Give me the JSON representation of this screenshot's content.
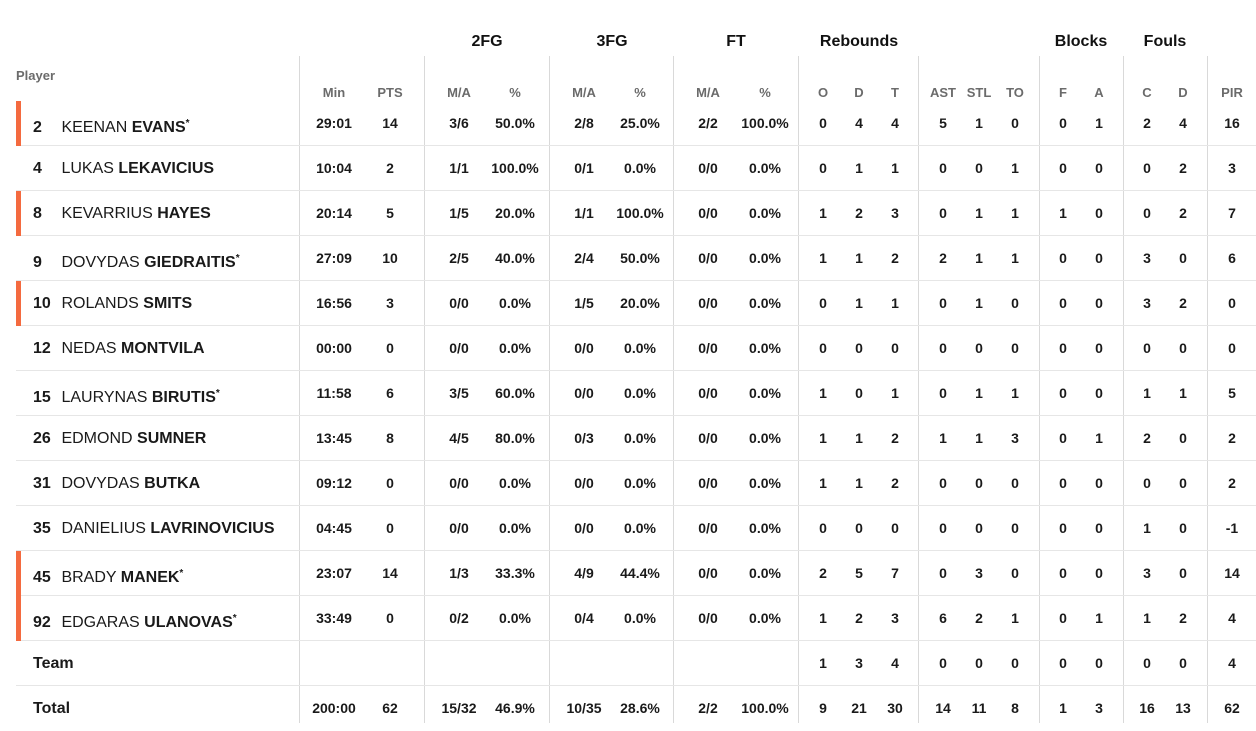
{
  "headers": {
    "player": "Player",
    "groups": [
      {
        "key": "fg2",
        "label": "2FG"
      },
      {
        "key": "fg3",
        "label": "3FG"
      },
      {
        "key": "ft",
        "label": "FT"
      },
      {
        "key": "reb",
        "label": "Rebounds"
      },
      {
        "key": "blk",
        "label": "Blocks"
      },
      {
        "key": "fouls",
        "label": "Fouls"
      }
    ],
    "columns": [
      "Min",
      "PTS",
      "M/A",
      "%",
      "M/A",
      "%",
      "M/A",
      "%",
      "O",
      "D",
      "T",
      "AST",
      "STL",
      "TO",
      "F",
      "A",
      "C",
      "D",
      "PIR"
    ]
  },
  "players": [
    {
      "number": "2",
      "first": "KEENAN",
      "last": "EVANS",
      "star": true,
      "starter": true,
      "stats": [
        "29:01",
        "14",
        "3/6",
        "50.0%",
        "2/8",
        "25.0%",
        "2/2",
        "100.0%",
        "0",
        "4",
        "4",
        "5",
        "1",
        "0",
        "0",
        "1",
        "2",
        "4",
        "16"
      ]
    },
    {
      "number": "4",
      "first": "LUKAS",
      "last": "LEKAVICIUS",
      "star": false,
      "starter": false,
      "stats": [
        "10:04",
        "2",
        "1/1",
        "100.0%",
        "0/1",
        "0.0%",
        "0/0",
        "0.0%",
        "0",
        "1",
        "1",
        "0",
        "0",
        "1",
        "0",
        "0",
        "0",
        "2",
        "3"
      ]
    },
    {
      "number": "8",
      "first": "KEVARRIUS",
      "last": "HAYES",
      "star": false,
      "starter": true,
      "stats": [
        "20:14",
        "5",
        "1/5",
        "20.0%",
        "1/1",
        "100.0%",
        "0/0",
        "0.0%",
        "1",
        "2",
        "3",
        "0",
        "1",
        "1",
        "1",
        "0",
        "0",
        "2",
        "7"
      ]
    },
    {
      "number": "9",
      "first": "DOVYDAS",
      "last": "GIEDRAITIS",
      "star": true,
      "starter": false,
      "stats": [
        "27:09",
        "10",
        "2/5",
        "40.0%",
        "2/4",
        "50.0%",
        "0/0",
        "0.0%",
        "1",
        "1",
        "2",
        "2",
        "1",
        "1",
        "0",
        "0",
        "3",
        "0",
        "6"
      ]
    },
    {
      "number": "10",
      "first": "ROLANDS",
      "last": "SMITS",
      "star": false,
      "starter": true,
      "stats": [
        "16:56",
        "3",
        "0/0",
        "0.0%",
        "1/5",
        "20.0%",
        "0/0",
        "0.0%",
        "0",
        "1",
        "1",
        "0",
        "1",
        "0",
        "0",
        "0",
        "3",
        "2",
        "0"
      ]
    },
    {
      "number": "12",
      "first": "NEDAS",
      "last": "MONTVILA",
      "star": false,
      "starter": false,
      "stats": [
        "00:00",
        "0",
        "0/0",
        "0.0%",
        "0/0",
        "0.0%",
        "0/0",
        "0.0%",
        "0",
        "0",
        "0",
        "0",
        "0",
        "0",
        "0",
        "0",
        "0",
        "0",
        "0"
      ]
    },
    {
      "number": "15",
      "first": "LAURYNAS",
      "last": "BIRUTIS",
      "star": true,
      "starter": false,
      "stats": [
        "11:58",
        "6",
        "3/5",
        "60.0%",
        "0/0",
        "0.0%",
        "0/0",
        "0.0%",
        "1",
        "0",
        "1",
        "0",
        "1",
        "1",
        "0",
        "0",
        "1",
        "1",
        "5"
      ]
    },
    {
      "number": "26",
      "first": "EDMOND",
      "last": "SUMNER",
      "star": false,
      "starter": false,
      "stats": [
        "13:45",
        "8",
        "4/5",
        "80.0%",
        "0/3",
        "0.0%",
        "0/0",
        "0.0%",
        "1",
        "1",
        "2",
        "1",
        "1",
        "3",
        "0",
        "1",
        "2",
        "0",
        "2"
      ]
    },
    {
      "number": "31",
      "first": "DOVYDAS",
      "last": "BUTKA",
      "star": false,
      "starter": false,
      "stats": [
        "09:12",
        "0",
        "0/0",
        "0.0%",
        "0/0",
        "0.0%",
        "0/0",
        "0.0%",
        "1",
        "1",
        "2",
        "0",
        "0",
        "0",
        "0",
        "0",
        "0",
        "0",
        "2"
      ]
    },
    {
      "number": "35",
      "first": "DANIELIUS",
      "last": "LAVRINOVICIUS",
      "star": false,
      "starter": false,
      "stats": [
        "04:45",
        "0",
        "0/0",
        "0.0%",
        "0/0",
        "0.0%",
        "0/0",
        "0.0%",
        "0",
        "0",
        "0",
        "0",
        "0",
        "0",
        "0",
        "0",
        "1",
        "0",
        "-1"
      ]
    },
    {
      "number": "45",
      "first": "BRADY",
      "last": "MANEK",
      "star": true,
      "starter": true,
      "stats": [
        "23:07",
        "14",
        "1/3",
        "33.3%",
        "4/9",
        "44.4%",
        "0/0",
        "0.0%",
        "2",
        "5",
        "7",
        "0",
        "3",
        "0",
        "0",
        "0",
        "3",
        "0",
        "14"
      ]
    },
    {
      "number": "92",
      "first": "EDGARAS",
      "last": "ULANOVAS",
      "star": true,
      "starter": true,
      "stats": [
        "33:49",
        "0",
        "0/2",
        "0.0%",
        "0/4",
        "0.0%",
        "0/0",
        "0.0%",
        "1",
        "2",
        "3",
        "6",
        "2",
        "1",
        "0",
        "1",
        "1",
        "2",
        "4"
      ]
    }
  ],
  "team": {
    "label": "Team",
    "stats": [
      "",
      "",
      "",
      "",
      "",
      "",
      "",
      "",
      "1",
      "3",
      "4",
      "0",
      "0",
      "0",
      "0",
      "0",
      "0",
      "0",
      "4"
    ]
  },
  "total": {
    "label": "Total",
    "stats": [
      "200:00",
      "62",
      "15/32",
      "46.9%",
      "10/35",
      "28.6%",
      "2/2",
      "100.0%",
      "9",
      "21",
      "30",
      "14",
      "11",
      "8",
      "1",
      "3",
      "16",
      "13",
      "62"
    ]
  },
  "colors": {
    "starter_marker": "#f46a3f",
    "divider": "#d9d9d9"
  }
}
